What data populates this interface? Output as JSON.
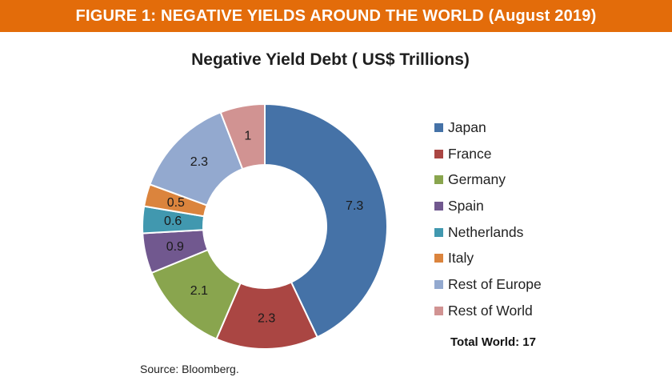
{
  "figure": {
    "banner_title": "FIGURE 1: NEGATIVE YIELDS AROUND THE WORLD (August 2019)",
    "banner_color": "#e36c0a",
    "total_text": "Total World: 17",
    "source_text": "Source: Bloomberg."
  },
  "chart_data": {
    "type": "pie",
    "variant": "donut",
    "title": "Negative Yield Debt ( US$ Trillions)",
    "legend_placement": "right",
    "categories": [
      "Japan",
      "France",
      "Germany",
      "Spain",
      "Netherlands",
      "Italy",
      "Rest of Europe",
      "Rest of World"
    ],
    "values": [
      7.3,
      2.3,
      2.1,
      0.9,
      0.6,
      0.5,
      2.3,
      1
    ],
    "value_labels": [
      "7.3",
      "2.3",
      "2.1",
      "0.9",
      "0.6",
      "0.5",
      "2.3",
      "1"
    ],
    "colors": [
      "#4572a7",
      "#aa4643",
      "#89a54e",
      "#71588f",
      "#4198af",
      "#db843d",
      "#93a9cf",
      "#d19392"
    ]
  }
}
